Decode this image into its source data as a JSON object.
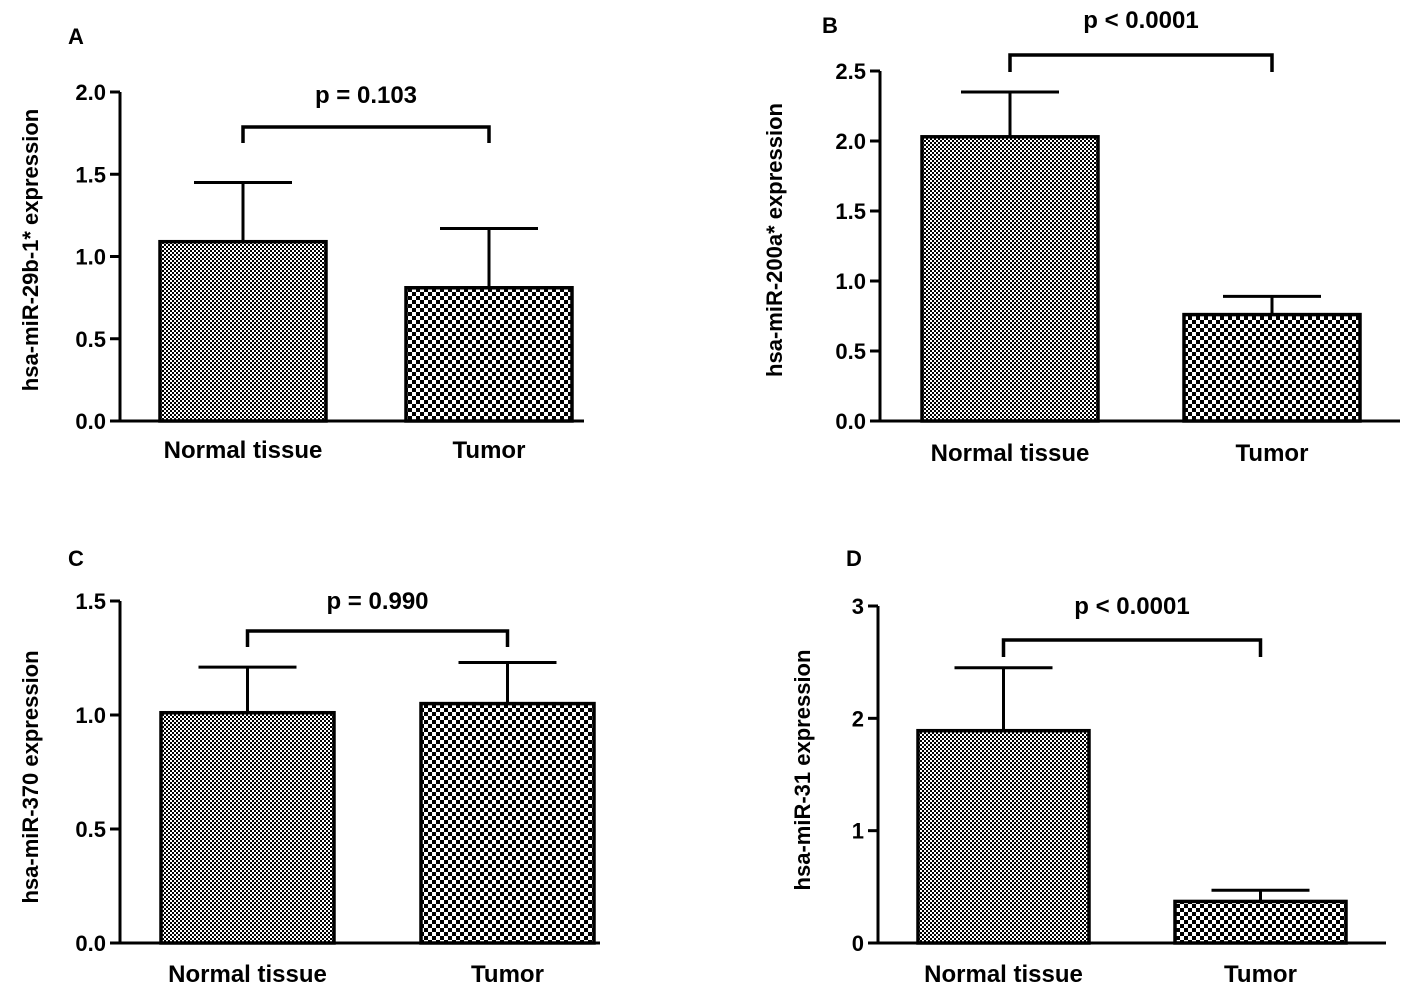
{
  "chart_data": [
    {
      "type": "bar",
      "panel": "A",
      "categories": [
        "Normal tissue",
        "Tumor"
      ],
      "values": [
        1.09,
        0.81
      ],
      "errors": [
        0.36,
        0.36
      ],
      "ylabel": "hsa-miR-29b-1* expression",
      "ylim": [
        0,
        2.0
      ],
      "yticks": [
        0.0,
        0.5,
        1.0,
        1.5,
        2.0
      ],
      "tick_labels": [
        "0.0",
        "0.5",
        "1.0",
        "1.5",
        "2.0"
      ],
      "annotation": "p = 0.103",
      "fills": [
        "fine",
        "coarse"
      ]
    },
    {
      "type": "bar",
      "panel": "B",
      "categories": [
        "Normal tissue",
        "Tumor"
      ],
      "values": [
        2.03,
        0.76
      ],
      "errors": [
        0.32,
        0.13
      ],
      "ylabel": "hsa-miR-200a* expression",
      "ylim": [
        0,
        2.5
      ],
      "yticks": [
        0.0,
        0.5,
        1.0,
        1.5,
        2.0,
        2.5
      ],
      "tick_labels": [
        "0.0",
        "0.5",
        "1.0",
        "1.5",
        "2.0",
        "2.5"
      ],
      "annotation": "p < 0.0001",
      "fills": [
        "fine",
        "coarse"
      ]
    },
    {
      "type": "bar",
      "panel": "C",
      "categories": [
        "Normal tissue",
        "Tumor"
      ],
      "values": [
        1.01,
        1.05
      ],
      "errors": [
        0.2,
        0.18
      ],
      "ylabel": "hsa-miR-370 expression",
      "ylim": [
        0,
        1.5
      ],
      "yticks": [
        0.0,
        0.5,
        1.0,
        1.5
      ],
      "tick_labels": [
        "0.0",
        "0.5",
        "1.0",
        "1.5"
      ],
      "annotation": "p = 0.990",
      "fills": [
        "fine",
        "coarse"
      ]
    },
    {
      "type": "bar",
      "panel": "D",
      "categories": [
        "Normal tissue",
        "Tumor"
      ],
      "values": [
        1.89,
        0.37
      ],
      "errors": [
        0.56,
        0.1
      ],
      "ylabel": "hsa-miR-31 expression",
      "ylim": [
        0,
        3
      ],
      "yticks": [
        0,
        1,
        2,
        3
      ],
      "tick_labels": [
        "0",
        "1",
        "2",
        "3"
      ],
      "annotation": "p < 0.0001",
      "fills": [
        "fine",
        "coarse"
      ]
    }
  ]
}
